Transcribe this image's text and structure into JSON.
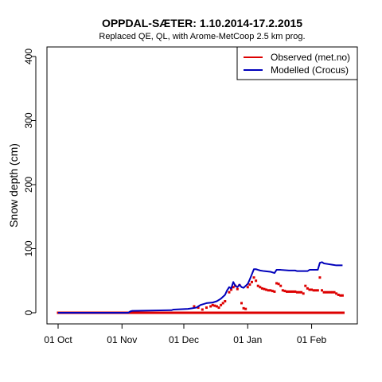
{
  "chart_data": {
    "type": "line",
    "title": "OPPDAL-SÆTER: 1.10.2014-17.2.2015",
    "subtitle": "Replaced QE, QL,  with Arome-MetCoop 2.5 km prog.",
    "xlabel": "",
    "ylabel": "Snow depth (cm)",
    "ylim": [
      0,
      400
    ],
    "yticks": [
      0,
      100,
      200,
      300,
      400
    ],
    "xlim": [
      "2014-10-01",
      "2015-02-17"
    ],
    "xticks": [
      {
        "date": "2014-10-01",
        "label": "01 Oct"
      },
      {
        "date": "2014-11-01",
        "label": "01 Nov"
      },
      {
        "date": "2014-12-01",
        "label": "01 Dec"
      },
      {
        "date": "2015-01-01",
        "label": "01 Jan"
      },
      {
        "date": "2015-02-01",
        "label": "01 Feb"
      }
    ],
    "grid": false,
    "legend_position": "top-right",
    "series": [
      {
        "name": "Observed (met.no)",
        "color": "#dd0000",
        "style": "points",
        "points": [
          [
            "2014-10-01",
            0
          ],
          [
            "2014-10-15",
            0
          ],
          [
            "2014-11-01",
            0
          ],
          [
            "2014-11-15",
            0
          ],
          [
            "2014-12-01",
            0
          ],
          [
            "2014-12-06",
            10
          ],
          [
            "2014-12-08",
            8
          ],
          [
            "2014-12-10",
            5
          ],
          [
            "2014-12-12",
            8
          ],
          [
            "2014-12-14",
            10
          ],
          [
            "2014-12-15",
            12
          ],
          [
            "2014-12-16",
            11
          ],
          [
            "2014-12-17",
            10
          ],
          [
            "2014-12-18",
            8
          ],
          [
            "2014-12-19",
            12
          ],
          [
            "2014-12-20",
            15
          ],
          [
            "2014-12-21",
            18
          ],
          [
            "2014-12-23",
            32
          ],
          [
            "2014-12-24",
            36
          ],
          [
            "2014-12-25",
            40
          ],
          [
            "2014-12-26",
            42
          ],
          [
            "2014-12-27",
            37
          ],
          [
            "2014-12-28",
            43
          ],
          [
            "2014-12-29",
            15
          ],
          [
            "2014-12-30",
            7
          ],
          [
            "2014-12-31",
            6
          ],
          [
            "2015-01-01",
            40
          ],
          [
            "2015-01-02",
            44
          ],
          [
            "2015-01-03",
            48
          ],
          [
            "2015-01-04",
            55
          ],
          [
            "2015-01-05",
            50
          ],
          [
            "2015-01-06",
            42
          ],
          [
            "2015-01-07",
            40
          ],
          [
            "2015-01-08",
            38
          ],
          [
            "2015-01-09",
            37
          ],
          [
            "2015-01-10",
            36
          ],
          [
            "2015-01-11",
            35
          ],
          [
            "2015-01-12",
            35
          ],
          [
            "2015-01-13",
            34
          ],
          [
            "2015-01-14",
            33
          ],
          [
            "2015-01-15",
            46
          ],
          [
            "2015-01-16",
            45
          ],
          [
            "2015-01-17",
            42
          ],
          [
            "2015-01-18",
            35
          ],
          [
            "2015-01-19",
            34
          ],
          [
            "2015-01-20",
            33
          ],
          [
            "2015-01-21",
            33
          ],
          [
            "2015-01-22",
            33
          ],
          [
            "2015-01-23",
            33
          ],
          [
            "2015-01-24",
            33
          ],
          [
            "2015-01-25",
            32
          ],
          [
            "2015-01-26",
            32
          ],
          [
            "2015-01-27",
            32
          ],
          [
            "2015-01-28",
            30
          ],
          [
            "2015-01-29",
            42
          ],
          [
            "2015-01-30",
            38
          ],
          [
            "2015-01-31",
            36
          ],
          [
            "2015-02-01",
            36
          ],
          [
            "2015-02-02",
            35
          ],
          [
            "2015-02-03",
            35
          ],
          [
            "2015-02-04",
            35
          ],
          [
            "2015-02-05",
            55
          ],
          [
            "2015-02-06",
            35
          ],
          [
            "2015-02-07",
            32
          ],
          [
            "2015-02-08",
            32
          ],
          [
            "2015-02-09",
            32
          ],
          [
            "2015-02-10",
            32
          ],
          [
            "2015-02-11",
            32
          ],
          [
            "2015-02-12",
            32
          ],
          [
            "2015-02-13",
            30
          ],
          [
            "2015-02-14",
            28
          ],
          [
            "2015-02-15",
            27
          ],
          [
            "2015-02-16",
            27
          ]
        ]
      },
      {
        "name": "Observed (met.no)",
        "color": "#dd0000",
        "style": "baseline",
        "points": [
          [
            "2014-10-01",
            0
          ],
          [
            "2015-02-17",
            0
          ]
        ]
      },
      {
        "name": "Modelled (Crocus)",
        "color": "#0000bb",
        "style": "line",
        "points": [
          [
            "2014-10-01",
            0
          ],
          [
            "2014-11-04",
            0
          ],
          [
            "2014-11-05",
            2
          ],
          [
            "2014-11-06",
            3
          ],
          [
            "2014-11-25",
            4
          ],
          [
            "2014-11-26",
            5
          ],
          [
            "2014-12-03",
            6
          ],
          [
            "2014-12-05",
            7
          ],
          [
            "2014-12-07",
            8
          ],
          [
            "2014-12-09",
            12
          ],
          [
            "2014-12-12",
            15
          ],
          [
            "2014-12-15",
            16
          ],
          [
            "2014-12-17",
            18
          ],
          [
            "2014-12-19",
            22
          ],
          [
            "2014-12-21",
            28
          ],
          [
            "2014-12-22",
            35
          ],
          [
            "2014-12-23",
            40
          ],
          [
            "2014-12-24",
            38
          ],
          [
            "2014-12-25",
            48
          ],
          [
            "2014-12-26",
            42
          ],
          [
            "2014-12-27",
            40
          ],
          [
            "2014-12-28",
            44
          ],
          [
            "2014-12-29",
            40
          ],
          [
            "2014-12-30",
            39
          ],
          [
            "2015-01-01",
            45
          ],
          [
            "2015-01-02",
            52
          ],
          [
            "2015-01-03",
            60
          ],
          [
            "2015-01-04",
            68
          ],
          [
            "2015-01-05",
            68
          ],
          [
            "2015-01-06",
            67
          ],
          [
            "2015-01-07",
            66
          ],
          [
            "2015-01-09",
            65
          ],
          [
            "2015-01-12",
            64
          ],
          [
            "2015-01-14",
            62
          ],
          [
            "2015-01-15",
            67
          ],
          [
            "2015-01-17",
            67
          ],
          [
            "2015-01-21",
            66
          ],
          [
            "2015-01-24",
            66
          ],
          [
            "2015-01-25",
            65
          ],
          [
            "2015-01-30",
            65
          ],
          [
            "2015-01-31",
            67
          ],
          [
            "2015-02-04",
            67
          ],
          [
            "2015-02-05",
            78
          ],
          [
            "2015-02-06",
            79
          ],
          [
            "2015-02-07",
            77
          ],
          [
            "2015-02-09",
            76
          ],
          [
            "2015-02-11",
            75
          ],
          [
            "2015-02-13",
            74
          ],
          [
            "2015-02-16",
            74
          ]
        ]
      }
    ]
  }
}
